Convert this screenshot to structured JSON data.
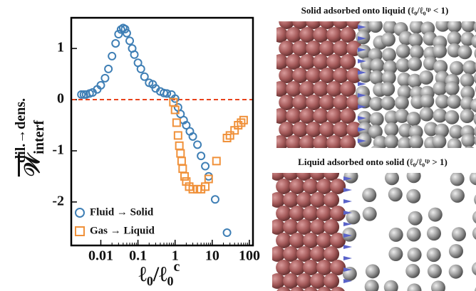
{
  "chart_data": {
    "type": "scatter",
    "x_label": {
      "base": "ℓ₀/ℓ₀",
      "sup": "c"
    },
    "y_label": {
      "base": "𝒲",
      "sub": "interf",
      "sup": "dil.→dens."
    },
    "xscale": "log",
    "xlim": [
      0.0016,
      125
    ],
    "xticks": [
      0.01,
      0.1,
      1,
      10,
      100
    ],
    "ylim": [
      -2.85,
      1.6
    ],
    "yticks": [
      1,
      0,
      -1,
      -2
    ],
    "hline": {
      "value": 0,
      "color": "#e8421c"
    },
    "legend": "lower left",
    "series": [
      {
        "name": "Fluid → Solid",
        "color": "#3f7fb5",
        "marker": "circle",
        "x": [
          0.003,
          0.0035,
          0.004,
          0.005,
          0.006,
          0.008,
          0.01,
          0.013,
          0.016,
          0.02,
          0.025,
          0.03,
          0.035,
          0.04,
          0.045,
          0.05,
          0.06,
          0.07,
          0.08,
          0.1,
          0.12,
          0.15,
          0.2,
          0.25,
          0.3,
          0.4,
          0.5,
          0.6,
          0.8,
          1.0,
          1.2,
          1.4,
          1.7,
          2.0,
          2.5,
          3.0,
          4.0,
          5.0,
          6.5,
          8.0,
          12,
          25
        ],
        "values": [
          0.1,
          0.1,
          0.1,
          0.12,
          0.14,
          0.2,
          0.28,
          0.42,
          0.6,
          0.85,
          1.1,
          1.28,
          1.37,
          1.4,
          1.38,
          1.3,
          1.15,
          1.0,
          0.88,
          0.72,
          0.6,
          0.45,
          0.33,
          0.3,
          0.22,
          0.16,
          0.13,
          0.12,
          0.1,
          0.02,
          -0.15,
          -0.28,
          -0.4,
          -0.5,
          -0.62,
          -0.72,
          -0.88,
          -1.1,
          -1.3,
          -1.5,
          -1.95,
          -2.6
        ]
      },
      {
        "name": "Gas → Liquid",
        "color": "#f0913a",
        "marker": "square",
        "x": [
          0.9,
          1.0,
          1.1,
          1.2,
          1.3,
          1.4,
          1.5,
          1.6,
          1.8,
          2.0,
          2.4,
          3.0,
          4.0,
          5.0,
          6.5,
          8.0,
          13,
          25,
          30,
          40,
          50,
          60,
          70
        ],
        "values": [
          -0.05,
          -0.2,
          -0.45,
          -0.7,
          -0.9,
          -1.05,
          -1.2,
          -1.35,
          -1.5,
          -1.6,
          -1.7,
          -1.75,
          -1.75,
          -1.75,
          -1.7,
          -1.55,
          -1.2,
          -0.75,
          -0.7,
          -0.6,
          -0.5,
          -0.45,
          -0.4
        ]
      }
    ]
  },
  "panels": [
    {
      "title": "Solid adsorbed onto liquid (ℓ₀/ℓ₀ᵗᵖ < 1)"
    },
    {
      "title": "Liquid adsorbed onto solid (ℓ₀/ℓ₀ᵗᵖ > 1)"
    }
  ]
}
